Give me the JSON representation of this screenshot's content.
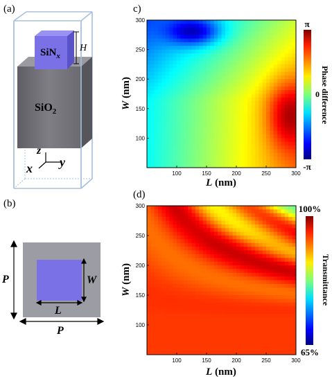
{
  "panels": {
    "a": "(a)",
    "b": "(b)",
    "c": "c)",
    "d": "(d)"
  },
  "schematic_a": {
    "top_block_label_main": "SiN",
    "top_block_label_sub": "x",
    "height_label": "H",
    "substrate_label_main": "SiO",
    "substrate_label_sub": "2",
    "axes": {
      "z": "z",
      "x": "x",
      "y": "y"
    }
  },
  "schematic_b": {
    "period_vertical": "P",
    "period_horizontal": "P",
    "width_label": "W",
    "length_label": "L"
  },
  "colors": {
    "frame": "#9db6d6",
    "sin_block": "#7b72e4",
    "sio2_front": "#76767c",
    "sio2_top": "#96969c",
    "sio2_side": "#5a5a60",
    "top_view_bg": "#9c9ca4",
    "top_view_square": "#7b72e4"
  },
  "chart_data": [
    {
      "type": "heatmap",
      "panel": "c",
      "xlabel": "L (nm)",
      "ylabel": "W (nm)",
      "xlim": [
        50,
        300
      ],
      "ylim": [
        50,
        300
      ],
      "xticks": [
        "100",
        "150",
        "200",
        "250",
        "300"
      ],
      "yticks": [
        "100",
        "150",
        "200",
        "250",
        "300"
      ],
      "colorbar": {
        "label": "Phase difference",
        "top": "π",
        "mid": "0",
        "bottom": "-π"
      }
    },
    {
      "type": "heatmap",
      "panel": "d",
      "xlabel": "L (nm)",
      "ylabel": "W (nm)",
      "xlim": [
        50,
        300
      ],
      "ylim": [
        50,
        300
      ],
      "xticks": [
        "100",
        "150",
        "200",
        "250",
        "300"
      ],
      "yticks": [
        "100",
        "150",
        "200",
        "250",
        "300"
      ],
      "colorbar": {
        "label": "Transmittance",
        "top": "100%",
        "bottom": "65%"
      }
    }
  ]
}
